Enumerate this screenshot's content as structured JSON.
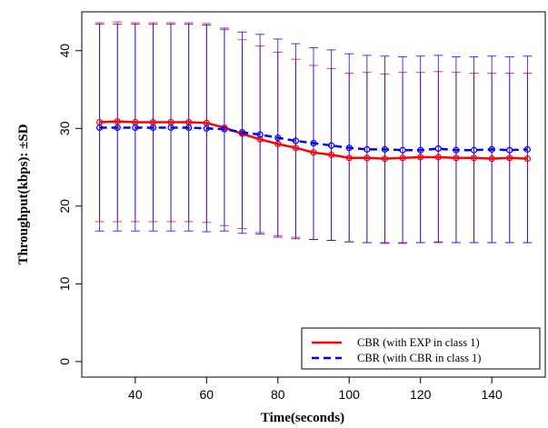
{
  "chart_data": {
    "type": "line",
    "xlabel": "Time(seconds)",
    "ylabel": "Throughput(kbps): ±SD",
    "xlim": [
      25,
      155
    ],
    "ylim": [
      -2,
      45
    ],
    "xticks": [
      40,
      60,
      80,
      100,
      120,
      140
    ],
    "yticks": [
      0,
      10,
      20,
      30,
      40
    ],
    "grid": false,
    "legend_position": "bottom-right",
    "x": [
      30,
      35,
      40,
      45,
      50,
      55,
      60,
      65,
      70,
      75,
      80,
      85,
      90,
      95,
      100,
      105,
      110,
      115,
      120,
      125,
      130,
      135,
      140,
      145,
      150
    ],
    "series": [
      {
        "name": "CBR (with EXP in class 1)",
        "color": "#ff0000",
        "line_style": "solid",
        "values": [
          30.8,
          30.9,
          30.8,
          30.8,
          30.8,
          30.8,
          30.7,
          30.1,
          29.3,
          28.6,
          28.0,
          27.5,
          26.9,
          26.6,
          26.2,
          26.2,
          26.1,
          26.2,
          26.3,
          26.3,
          26.2,
          26.2,
          26.1,
          26.2,
          26.1
        ],
        "upper": [
          43.6,
          43.7,
          43.6,
          43.6,
          43.6,
          43.6,
          43.5,
          42.7,
          41.4,
          40.6,
          39.8,
          38.9,
          38.1,
          37.7,
          37.1,
          37.2,
          37.0,
          37.2,
          37.2,
          37.3,
          37.2,
          37.1,
          37.1,
          37.1,
          37.1
        ],
        "lower": [
          18.0,
          18.0,
          18.0,
          18.0,
          18.0,
          18.0,
          17.9,
          17.5,
          17.1,
          16.6,
          16.2,
          16.0,
          15.7,
          15.6,
          15.4,
          15.3,
          15.2,
          15.2,
          15.3,
          15.3,
          15.3,
          15.3,
          15.3,
          15.3,
          15.3
        ]
      },
      {
        "name": "CBR (with CBR in class 1)",
        "color": "#0000ff",
        "line_style": "dashed",
        "values": [
          30.1,
          30.1,
          30.1,
          30.1,
          30.1,
          30.1,
          30.0,
          29.9,
          29.5,
          29.2,
          28.8,
          28.4,
          28.1,
          27.8,
          27.5,
          27.3,
          27.3,
          27.2,
          27.2,
          27.4,
          27.2,
          27.2,
          27.3,
          27.2,
          27.3
        ],
        "upper": [
          43.4,
          43.4,
          43.4,
          43.4,
          43.4,
          43.4,
          43.3,
          42.9,
          42.4,
          42.1,
          41.5,
          40.9,
          40.4,
          40.1,
          39.6,
          39.4,
          39.3,
          39.2,
          39.3,
          39.4,
          39.2,
          39.2,
          39.3,
          39.2,
          39.3
        ],
        "lower": [
          16.8,
          16.8,
          16.8,
          16.8,
          16.8,
          16.8,
          16.7,
          16.8,
          16.5,
          16.4,
          16.0,
          15.8,
          15.7,
          15.6,
          15.4,
          15.3,
          15.3,
          15.3,
          15.3,
          15.4,
          15.3,
          15.3,
          15.3,
          15.3,
          15.3
        ]
      }
    ]
  }
}
